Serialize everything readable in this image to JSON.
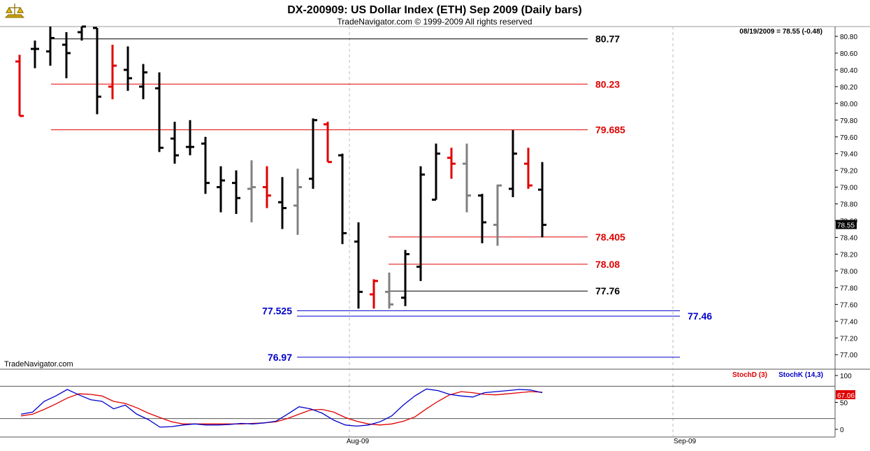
{
  "chart_data": [
    {
      "type": "ohlc",
      "title": "DX-200909:  US Dollar Index (ETH) Sep 2009  (Daily bars)",
      "subtitle": "TradeNavigator.com © 1999-2009 All rights reserved",
      "quote": "08/19/2009 = 78.55 (-0.48)",
      "last_price": "78.55",
      "watermark": "TradeNavigator.com",
      "ylim": [
        76.85,
        80.85
      ],
      "y_ticks": [
        "80.80",
        "80.60",
        "80.40",
        "80.20",
        "80.00",
        "79.80",
        "79.60",
        "79.40",
        "79.20",
        "79.00",
        "78.80",
        "78.60",
        "78.40",
        "78.20",
        "78.00",
        "77.80",
        "77.60",
        "77.40",
        "77.20",
        "77.00"
      ],
      "x_ticks": [
        "Aug-09",
        "Sep-09"
      ],
      "colors": {
        "up_bar": "#000000",
        "down_bar": "#e00000",
        "green_bar": "#19d019",
        "gray_bar": "#808080",
        "red_level": "#e00000",
        "black_level": "#000000",
        "blue_level": "#0000cc",
        "grid": "#bbbbbb",
        "last_box": "#000000"
      },
      "bars": [
        {
          "o": 80.5,
          "h": 80.58,
          "l": 79.85,
          "c": 79.85,
          "color": "red"
        },
        {
          "o": 80.65,
          "h": 80.75,
          "l": 80.42,
          "c": 80.65,
          "color": "black"
        },
        {
          "o": 80.62,
          "h": 80.95,
          "l": 80.45,
          "c": 80.78,
          "color": "black"
        },
        {
          "o": 80.7,
          "h": 80.85,
          "l": 80.3,
          "c": 80.6,
          "color": "black"
        },
        {
          "o": 80.85,
          "h": 80.95,
          "l": 80.75,
          "c": 80.95,
          "color": "black"
        },
        {
          "o": 80.9,
          "h": 80.9,
          "l": 79.87,
          "c": 80.08,
          "color": "black"
        },
        {
          "o": 80.2,
          "h": 80.7,
          "l": 80.05,
          "c": 80.45,
          "color": "red"
        },
        {
          "o": 80.4,
          "h": 80.68,
          "l": 80.15,
          "c": 80.3,
          "color": "black"
        },
        {
          "o": 80.2,
          "h": 80.47,
          "l": 80.05,
          "c": 80.37,
          "color": "black"
        },
        {
          "o": 80.18,
          "h": 80.37,
          "l": 79.42,
          "c": 79.47,
          "color": "black"
        },
        {
          "o": 79.58,
          "h": 79.78,
          "l": 79.28,
          "c": 79.38,
          "color": "black"
        },
        {
          "o": 79.48,
          "h": 79.8,
          "l": 79.38,
          "c": 79.48,
          "color": "black"
        },
        {
          "o": 79.52,
          "h": 79.6,
          "l": 78.92,
          "c": 79.05,
          "color": "black"
        },
        {
          "o": 79.0,
          "h": 79.25,
          "l": 78.7,
          "c": 79.08,
          "color": "black"
        },
        {
          "o": 79.05,
          "h": 79.2,
          "l": 78.68,
          "c": 78.87,
          "color": "black"
        },
        {
          "o": 78.98,
          "h": 79.32,
          "l": 78.58,
          "c": 79.0,
          "color": "gray"
        },
        {
          "o": 79.0,
          "h": 79.25,
          "l": 78.75,
          "c": 78.9,
          "color": "red"
        },
        {
          "o": 78.82,
          "h": 79.12,
          "l": 78.5,
          "c": 78.75,
          "color": "black"
        },
        {
          "o": 78.78,
          "h": 79.22,
          "l": 78.43,
          "c": 79.0,
          "color": "gray"
        },
        {
          "o": 79.1,
          "h": 79.82,
          "l": 78.98,
          "c": 79.8,
          "color": "black"
        },
        {
          "o": 79.75,
          "h": 79.78,
          "l": 79.3,
          "c": 79.3,
          "color": "red"
        },
        {
          "o": 79.38,
          "h": 79.4,
          "l": 78.32,
          "c": 78.45,
          "color": "black"
        },
        {
          "o": 78.35,
          "h": 78.58,
          "l": 77.55,
          "c": 77.75,
          "color": "black"
        },
        {
          "o": 77.72,
          "h": 77.9,
          "l": 77.55,
          "c": 77.88,
          "color": "red"
        },
        {
          "o": 77.75,
          "h": 77.98,
          "l": 77.55,
          "c": 77.6,
          "color": "gray"
        },
        {
          "o": 77.68,
          "h": 78.25,
          "l": 77.58,
          "c": 78.2,
          "color": "black"
        },
        {
          "o": 78.05,
          "h": 79.25,
          "l": 77.88,
          "c": 79.15,
          "color": "black"
        },
        {
          "o": 78.85,
          "h": 79.52,
          "l": 78.85,
          "c": 79.4,
          "color": "black"
        },
        {
          "o": 79.35,
          "h": 79.47,
          "l": 79.1,
          "c": 79.28,
          "color": "red"
        },
        {
          "o": 79.28,
          "h": 79.52,
          "l": 78.7,
          "c": 78.9,
          "color": "gray"
        },
        {
          "o": 78.9,
          "h": 78.92,
          "l": 78.33,
          "c": 78.58,
          "color": "black"
        },
        {
          "o": 78.55,
          "h": 79.03,
          "l": 78.3,
          "c": 79.02,
          "color": "gray"
        },
        {
          "o": 78.98,
          "h": 79.68,
          "l": 78.88,
          "c": 79.4,
          "color": "black"
        },
        {
          "o": 79.28,
          "h": 79.47,
          "l": 78.98,
          "c": 79.02,
          "color": "red"
        },
        {
          "o": 78.97,
          "h": 79.3,
          "l": 78.4,
          "c": 78.55,
          "color": "black"
        }
      ],
      "levels": [
        {
          "value": 80.77,
          "label": "80.77",
          "color": "black",
          "side": "right"
        },
        {
          "value": 80.23,
          "label": "80.23",
          "color": "red",
          "side": "right"
        },
        {
          "value": 79.685,
          "label": "79.685",
          "color": "red",
          "side": "right"
        },
        {
          "value": 78.405,
          "label": "78.405",
          "color": "red",
          "side": "right"
        },
        {
          "value": 78.08,
          "label": "78.08",
          "color": "red",
          "side": "right"
        },
        {
          "value": 77.76,
          "label": "77.76",
          "color": "black",
          "side": "right"
        },
        {
          "value": 77.525,
          "label": "77.525",
          "color": "blue",
          "side": "left"
        },
        {
          "value": 77.46,
          "label": "77.46",
          "color": "blue",
          "side": "farright"
        },
        {
          "value": 76.97,
          "label": "76.97",
          "color": "blue",
          "side": "left"
        }
      ]
    },
    {
      "type": "line",
      "ylim": [
        0,
        100
      ],
      "y_ticks": [
        "100",
        "50",
        "0"
      ],
      "reference_lines": [
        80,
        20
      ],
      "last_value": "67.06",
      "series": [
        {
          "name": "StochD (3)",
          "color": "#e00000",
          "values": [
            25,
            28,
            37,
            47,
            58,
            66,
            65,
            62,
            52,
            48,
            40,
            30,
            22,
            14,
            10,
            10,
            10,
            10,
            10,
            10,
            11,
            12,
            14,
            20,
            28,
            36,
            37,
            32,
            22,
            15,
            10,
            8,
            10,
            15,
            23,
            38,
            52,
            64,
            70,
            68,
            65,
            64,
            66,
            68,
            70,
            69
          ]
        },
        {
          "name": "StochK (14,3)",
          "color": "#0000cc",
          "values": [
            28,
            32,
            52,
            62,
            74,
            64,
            55,
            52,
            38,
            45,
            28,
            18,
            4,
            5,
            8,
            10,
            8,
            8,
            9,
            11,
            10,
            12,
            15,
            28,
            42,
            38,
            30,
            17,
            8,
            6,
            8,
            14,
            25,
            45,
            62,
            75,
            72,
            65,
            62,
            60,
            68,
            70,
            72,
            74,
            73,
            68
          ]
        }
      ]
    }
  ]
}
